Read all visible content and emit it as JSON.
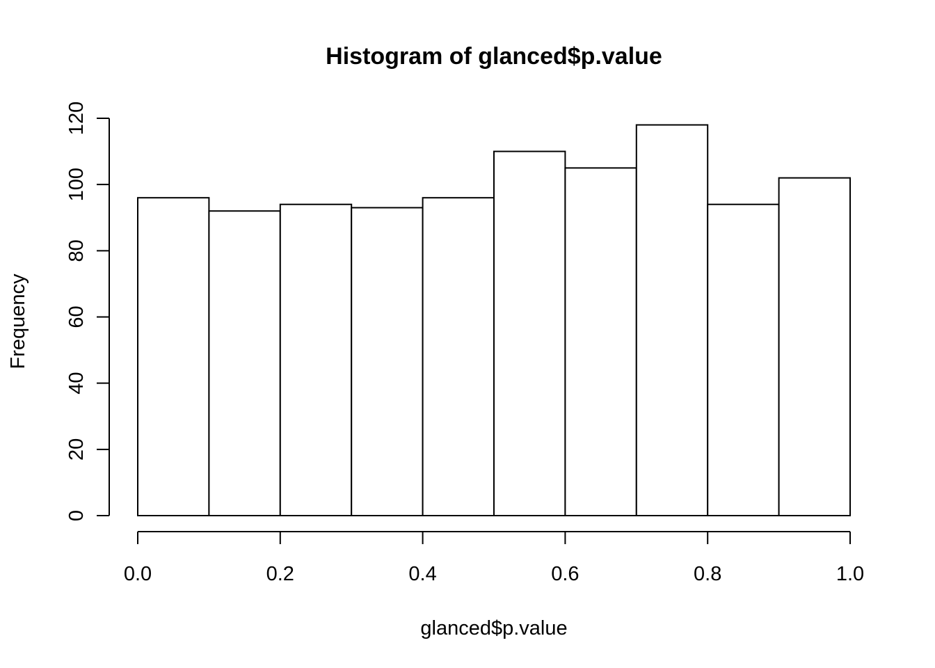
{
  "chart_data": {
    "type": "bar",
    "title": "Histogram of glanced$p.value",
    "xlabel": "glanced$p.value",
    "ylabel": "Frequency",
    "bin_edges": [
      0.0,
      0.1,
      0.2,
      0.3,
      0.4,
      0.5,
      0.6,
      0.7,
      0.8,
      0.9,
      1.0
    ],
    "values": [
      96,
      92,
      94,
      93,
      96,
      110,
      105,
      118,
      94,
      102
    ],
    "xlim": [
      0,
      1
    ],
    "ylim": [
      0,
      120
    ],
    "x_ticks": [
      0.0,
      0.2,
      0.4,
      0.6,
      0.8,
      1.0
    ],
    "x_tick_labels": [
      "0.0",
      "0.2",
      "0.4",
      "0.6",
      "0.8",
      "1.0"
    ],
    "y_ticks": [
      0,
      20,
      40,
      60,
      80,
      100,
      120
    ],
    "y_tick_labels": [
      "0",
      "20",
      "40",
      "60",
      "80",
      "100",
      "120"
    ],
    "grid": false,
    "bar_fill": "#ffffff",
    "bar_stroke": "#000000"
  }
}
